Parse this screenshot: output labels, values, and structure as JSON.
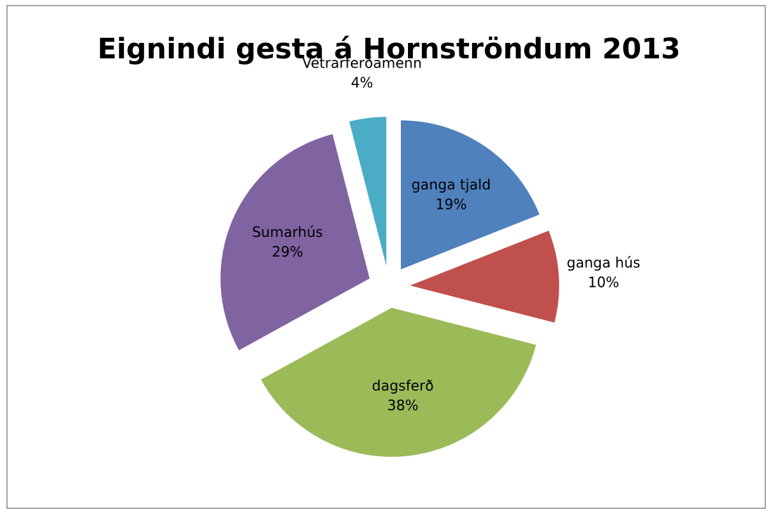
{
  "chart_data": {
    "type": "pie",
    "title": "Eignindi gesta á Hornströndum 2013",
    "categories": [
      "ganga tjald",
      "ganga hús",
      "dagsferð",
      "Sumarhús",
      "Vetrarferðamenn"
    ],
    "values": [
      19,
      10,
      38,
      29,
      4
    ],
    "value_labels": [
      "19%",
      "10%",
      "38%",
      "29%",
      "4%"
    ],
    "colors": [
      "#4f81bd",
      "#c0504d",
      "#9bbb59",
      "#8064a2",
      "#4bacc6"
    ]
  }
}
